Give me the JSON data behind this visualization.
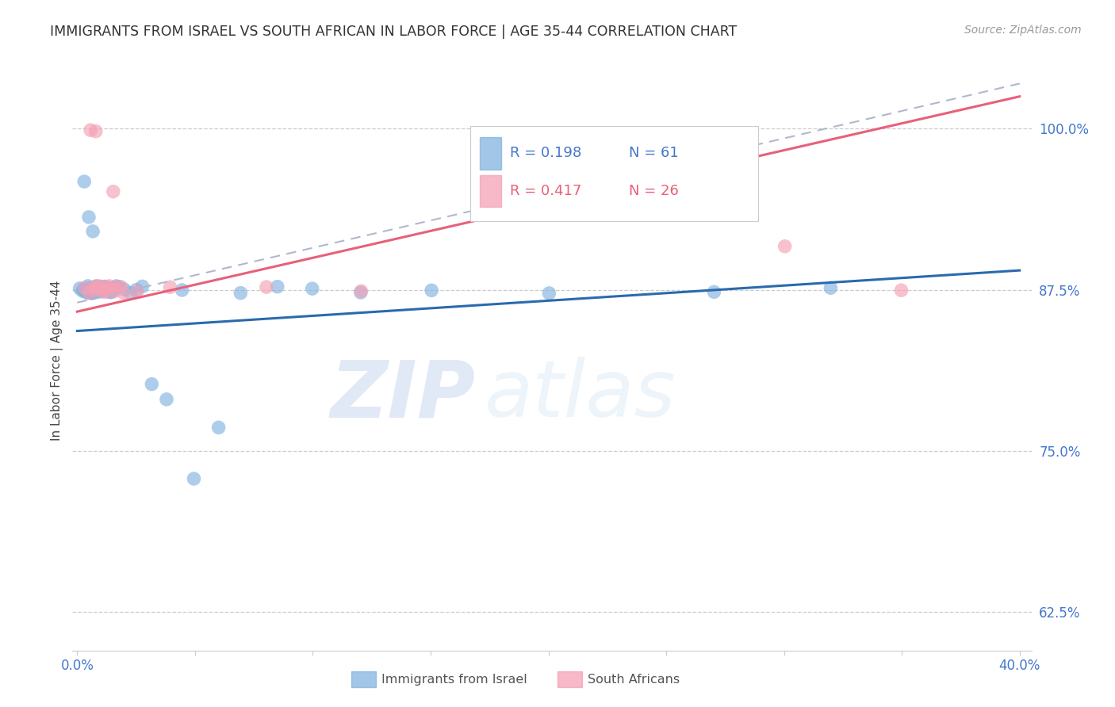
{
  "title": "IMMIGRANTS FROM ISRAEL VS SOUTH AFRICAN IN LABOR FORCE | AGE 35-44 CORRELATION CHART",
  "source": "Source: ZipAtlas.com",
  "ylabel": "In Labor Force | Age 35-44",
  "ytick_labels": [
    "100.0%",
    "87.5%",
    "75.0%",
    "62.5%"
  ],
  "ytick_values": [
    1.0,
    0.875,
    0.75,
    0.625
  ],
  "xlim": [
    -0.002,
    0.405
  ],
  "ylim": [
    0.595,
    1.045
  ],
  "legend_r1": "R = 0.198",
  "legend_n1": "N = 61",
  "legend_r2": "R = 0.417",
  "legend_n2": "N = 26",
  "israel_color": "#82b3e0",
  "sa_color": "#f5a0b5",
  "israel_line_color": "#2b6aad",
  "sa_line_color": "#e8607a",
  "dashed_line_color": "#b0b8cc",
  "watermark_zip": "ZIP",
  "watermark_atlas": "atlas",
  "israel_x": [
    0.001,
    0.002,
    0.003,
    0.003,
    0.004,
    0.004,
    0.004,
    0.005,
    0.005,
    0.005,
    0.005,
    0.005,
    0.006,
    0.006,
    0.006,
    0.006,
    0.006,
    0.007,
    0.007,
    0.007,
    0.007,
    0.008,
    0.008,
    0.008,
    0.008,
    0.009,
    0.009,
    0.009,
    0.01,
    0.01,
    0.01,
    0.011,
    0.011,
    0.012,
    0.012,
    0.012,
    0.013,
    0.013,
    0.014,
    0.015,
    0.015,
    0.016,
    0.017,
    0.018,
    0.02,
    0.022,
    0.025,
    0.028,
    0.032,
    0.038,
    0.045,
    0.05,
    0.06,
    0.07,
    0.085,
    0.1,
    0.12,
    0.15,
    0.2,
    0.27,
    0.32
  ],
  "israel_y": [
    0.875,
    0.875,
    0.875,
    0.96,
    0.875,
    0.875,
    0.875,
    0.875,
    0.875,
    0.875,
    0.875,
    0.93,
    0.875,
    0.875,
    0.875,
    0.875,
    0.875,
    0.875,
    0.875,
    0.875,
    0.92,
    0.875,
    0.875,
    0.875,
    0.875,
    0.875,
    0.875,
    0.875,
    0.875,
    0.875,
    0.875,
    0.875,
    0.875,
    0.875,
    0.875,
    0.875,
    0.875,
    0.875,
    0.875,
    0.875,
    0.875,
    0.875,
    0.875,
    0.875,
    0.875,
    0.875,
    0.875,
    0.875,
    0.8,
    0.79,
    0.875,
    0.73,
    0.77,
    0.875,
    0.875,
    0.875,
    0.875,
    0.875,
    0.875,
    0.875,
    0.875
  ],
  "sa_x": [
    0.003,
    0.005,
    0.006,
    0.007,
    0.007,
    0.008,
    0.009,
    0.009,
    0.01,
    0.01,
    0.011,
    0.012,
    0.013,
    0.014,
    0.015,
    0.015,
    0.016,
    0.017,
    0.018,
    0.02,
    0.025,
    0.04,
    0.08,
    0.12,
    0.3,
    0.35
  ],
  "sa_y": [
    0.875,
    0.875,
    1.0,
    0.875,
    0.875,
    1.0,
    0.875,
    0.875,
    0.875,
    0.875,
    0.875,
    0.875,
    0.875,
    0.875,
    0.95,
    0.875,
    0.875,
    0.875,
    0.875,
    0.875,
    0.875,
    0.875,
    0.875,
    0.875,
    0.91,
    0.875
  ],
  "israel_line": [
    0.0,
    0.4,
    0.843,
    0.89
  ],
  "sa_line": [
    0.0,
    0.4,
    0.858,
    1.025
  ],
  "dash_line": [
    0.0,
    0.4,
    0.865,
    1.035
  ],
  "xticks": [
    0.0,
    0.05,
    0.1,
    0.15,
    0.2,
    0.25,
    0.3,
    0.35,
    0.4
  ],
  "xtick_labels": [
    "0.0%",
    "",
    "",
    "",
    "",
    "",
    "",
    "",
    "40.0%"
  ],
  "tick_color": "#4477cc",
  "axis_color": "#cccccc",
  "title_color": "#333333",
  "source_color": "#999999",
  "ylabel_color": "#444444"
}
